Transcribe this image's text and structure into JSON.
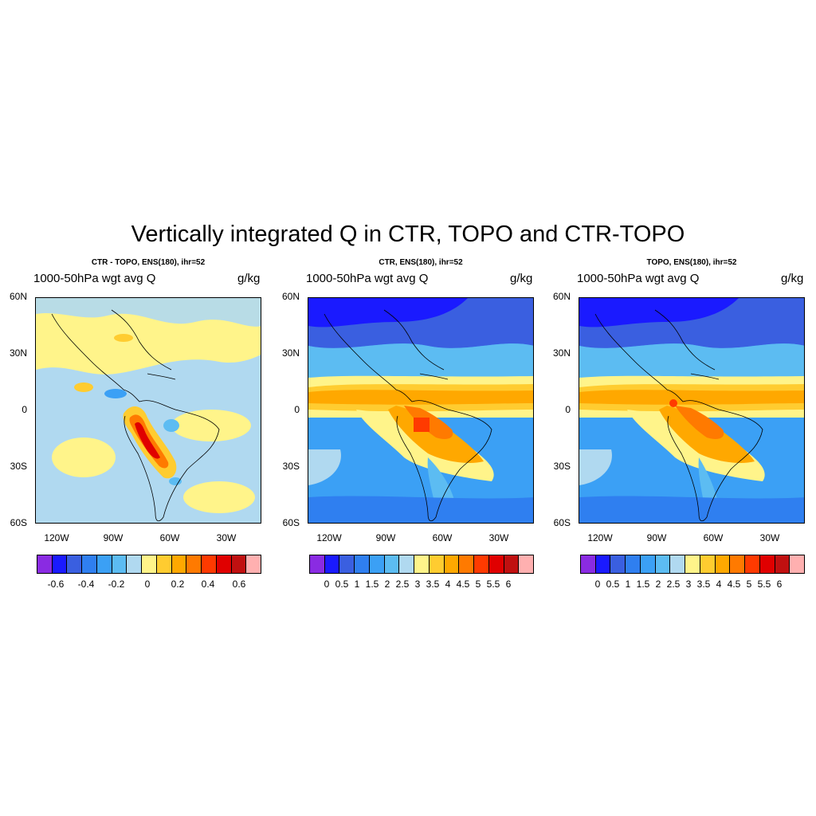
{
  "figure_title": "Vertically integrated Q in CTR, TOPO and CTR-TOPO",
  "panels": [
    {
      "id": "diff",
      "title": "CTR - TOPO, ENS(180), ihr=52",
      "left_label": "1000-50hPa wgt avg Q",
      "right_label": "g/kg",
      "colorbar_labels": [
        "-0.6",
        "-0.4",
        "-0.2",
        "0",
        "0.2",
        "0.4",
        "0.6"
      ],
      "colors": [
        "#8a2be2",
        "#1a1aff",
        "#3a5fe0",
        "#2f7ff0",
        "#3ba0f5",
        "#5cbcf2",
        "#b0d9f0",
        "#fff48a",
        "#ffcc30",
        "#ffa800",
        "#ff7a00",
        "#ff3a00",
        "#e00000",
        "#c01010",
        "#ffb0b0"
      ]
    },
    {
      "id": "ctr",
      "title": "CTR, ENS(180), ihr=52",
      "left_label": "1000-50hPa wgt avg Q",
      "right_label": "g/kg",
      "colorbar_labels": [
        "0",
        "0.5",
        "1",
        "1.5",
        "2",
        "2.5",
        "3",
        "3.5",
        "4",
        "4.5",
        "5",
        "5.5",
        "6"
      ],
      "colors": [
        "#8a2be2",
        "#1a1aff",
        "#3a5fe0",
        "#2f7ff0",
        "#3ba0f5",
        "#5cbcf2",
        "#b0d9f0",
        "#fff48a",
        "#ffcc30",
        "#ffa800",
        "#ff7a00",
        "#ff3a00",
        "#e00000",
        "#c01010",
        "#ffb0b0"
      ]
    },
    {
      "id": "topo",
      "title": "TOPO, ENS(180), ihr=52",
      "left_label": "1000-50hPa wgt avg Q",
      "right_label": "g/kg",
      "colorbar_labels": [
        "0",
        "0.5",
        "1",
        "1.5",
        "2",
        "2.5",
        "3",
        "3.5",
        "4",
        "4.5",
        "5",
        "5.5",
        "6"
      ],
      "colors": [
        "#8a2be2",
        "#1a1aff",
        "#3a5fe0",
        "#2f7ff0",
        "#3ba0f5",
        "#5cbcf2",
        "#b0d9f0",
        "#fff48a",
        "#ffcc30",
        "#ffa800",
        "#ff7a00",
        "#ff3a00",
        "#e00000",
        "#c01010",
        "#ffb0b0"
      ]
    }
  ],
  "lat_labels": [
    "60N",
    "30N",
    "0",
    "30S",
    "60S"
  ],
  "lon_labels": [
    "120W",
    "90W",
    "60W",
    "30W"
  ]
}
